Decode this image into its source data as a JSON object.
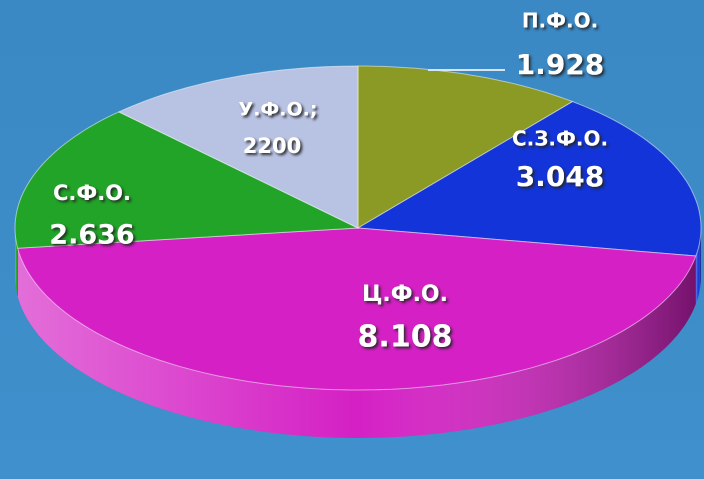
{
  "chart_data": {
    "type": "pie",
    "categories": [
      "П.Ф.О.",
      "С.З.Ф.О.",
      "Ц.Ф.О.",
      "С.Ф.О.",
      "У.Ф.О.;"
    ],
    "values": [
      1928,
      3048,
      8108,
      2636,
      2200
    ],
    "value_labels": [
      "1.928",
      "3.048",
      "8.108",
      "2.636",
      "2200"
    ],
    "colors": [
      "#8a9a24",
      "#1234d8",
      "#d420c4",
      "#22a428",
      "#b8c2e2"
    ]
  }
}
